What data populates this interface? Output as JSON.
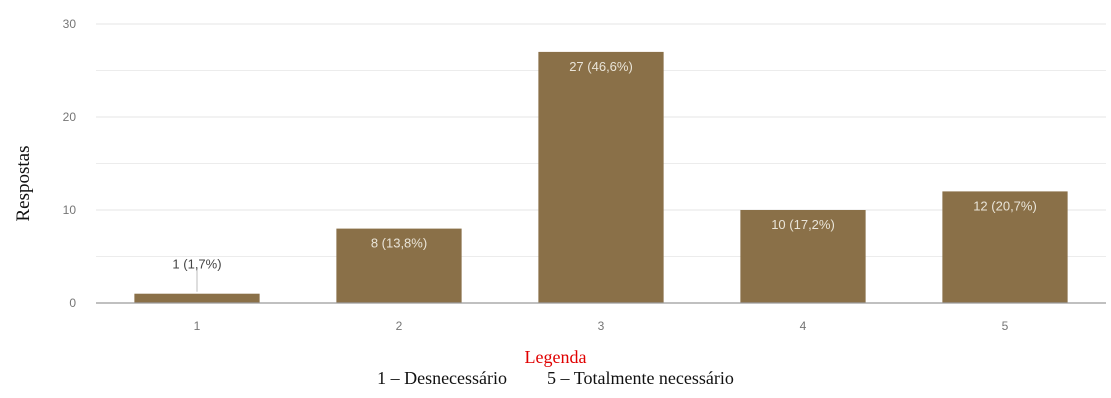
{
  "chart_data": {
    "type": "bar",
    "categories": [
      "1",
      "2",
      "3",
      "4",
      "5"
    ],
    "values": [
      1,
      8,
      27,
      10,
      12
    ],
    "data_labels": [
      "1 (1,7%)",
      "8 (13,8%)",
      "27 (46,6%)",
      "10 (17,2%)",
      "12 (20,7%)"
    ],
    "ylabel": "Respostas",
    "yticks": [
      "0",
      "10",
      "20",
      "30"
    ],
    "ylim": [
      0,
      30
    ],
    "grid": true,
    "colors": {
      "bar": "#8a7048",
      "grid": "#e6e6e6",
      "axis": "#9a9a9a",
      "tick_text": "#757575",
      "data_label_text": "#e9e4d8",
      "outside_label_text": "#444444"
    }
  },
  "legend": {
    "title": "Legenda",
    "item_low": "1 – Desnecessário",
    "item_high": "5 – Totalmente necessário",
    "title_color": "#e00000"
  }
}
